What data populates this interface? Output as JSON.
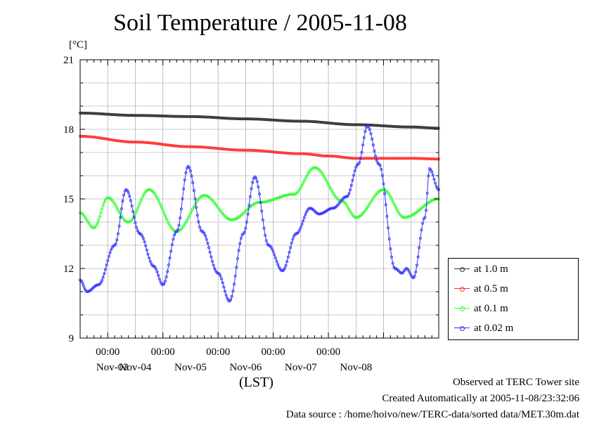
{
  "chart_data": {
    "type": "line",
    "title": "Soil Temperature / 2005-11-08",
    "ylabel": "[°C]",
    "xlabel": "(LST)",
    "ylim": [
      9,
      21
    ],
    "yticks": [
      "9",
      "12",
      "15",
      "18",
      "21"
    ],
    "x_start": "2005-11-02 12:00",
    "x_end": "2005-11-08 24:00",
    "time_labels": [
      "00:00",
      "00:00",
      "00:00",
      "00:00",
      "00:00"
    ],
    "date_labels": [
      "Nov-03",
      "Nov-04",
      "Nov-05",
      "Nov-06",
      "Nov-07",
      "Nov-08"
    ],
    "grid": true,
    "legend_position": "right",
    "series": [
      {
        "name": "at 1.0 m",
        "color": "#333333",
        "points": [
          [
            "11-02 12:00",
            18.7
          ],
          [
            "11-03 12:00",
            18.6
          ],
          [
            "11-04 12:00",
            18.55
          ],
          [
            "11-05 12:00",
            18.45
          ],
          [
            "11-06 12:00",
            18.35
          ],
          [
            "11-07 12:00",
            18.2
          ],
          [
            "11-08 12:00",
            18.1
          ],
          [
            "11-08 24:00",
            18.05
          ]
        ]
      },
      {
        "name": "at 0.5 m",
        "color": "#ff3333",
        "points": [
          [
            "11-02 12:00",
            17.7
          ],
          [
            "11-03 12:00",
            17.45
          ],
          [
            "11-04 12:00",
            17.25
          ],
          [
            "11-05 12:00",
            17.1
          ],
          [
            "11-06 12:00",
            16.95
          ],
          [
            "11-07 00:00",
            16.85
          ],
          [
            "11-07 12:00",
            16.75
          ],
          [
            "11-08 12:00",
            16.75
          ],
          [
            "11-08 24:00",
            16.72
          ]
        ]
      },
      {
        "name": "at 0.1 m",
        "color": "#33ff33",
        "points": [
          [
            "11-02 12:00",
            14.4
          ],
          [
            "11-02 18:00",
            13.75
          ],
          [
            "11-03 00:00",
            15.05
          ],
          [
            "11-03 09:00",
            14.0
          ],
          [
            "11-03 18:00",
            15.4
          ],
          [
            "11-04 06:00",
            13.6
          ],
          [
            "11-04 18:00",
            15.15
          ],
          [
            "11-05 06:00",
            14.1
          ],
          [
            "11-05 18:00",
            14.85
          ],
          [
            "11-06 09:00",
            15.2
          ],
          [
            "11-06 18:00",
            16.35
          ],
          [
            "11-07 06:00",
            14.9
          ],
          [
            "11-07 12:00",
            14.2
          ],
          [
            "11-08 00:00",
            15.4
          ],
          [
            "11-08 09:00",
            14.2
          ],
          [
            "11-08 24:00",
            15.0
          ]
        ]
      },
      {
        "name": "at 0.02 m",
        "color": "#3333ff",
        "points": [
          [
            "11-02 12:00",
            11.5
          ],
          [
            "11-02 15:00",
            11.0
          ],
          [
            "11-02 20:00",
            11.3
          ],
          [
            "11-03 03:00",
            13.0
          ],
          [
            "11-03 08:00",
            15.4
          ],
          [
            "11-03 14:00",
            13.5
          ],
          [
            "11-03 20:00",
            12.1
          ],
          [
            "11-04 00:00",
            11.3
          ],
          [
            "11-04 06:00",
            13.6
          ],
          [
            "11-04 11:00",
            16.4
          ],
          [
            "11-04 17:00",
            13.6
          ],
          [
            "11-05 00:00",
            11.8
          ],
          [
            "11-05 05:00",
            10.6
          ],
          [
            "11-05 11:00",
            13.5
          ],
          [
            "11-05 16:00",
            15.95
          ],
          [
            "11-05 22:00",
            13.0
          ],
          [
            "11-06 04:00",
            11.9
          ],
          [
            "11-06 10:00",
            13.5
          ],
          [
            "11-06 16:00",
            14.6
          ],
          [
            "11-06 20:00",
            14.35
          ],
          [
            "11-07 02:00",
            14.6
          ],
          [
            "11-07 08:00",
            15.1
          ],
          [
            "11-07 13:00",
            16.5
          ],
          [
            "11-07 17:00",
            18.15
          ],
          [
            "11-07 22:00",
            16.5
          ],
          [
            "11-08 05:00",
            12.0
          ],
          [
            "11-08 08:00",
            11.8
          ],
          [
            "11-08 10:00",
            12.0
          ],
          [
            "11-08 13:00",
            11.6
          ],
          [
            "11-08 18:00",
            14.2
          ],
          [
            "11-08 20:00",
            16.3
          ],
          [
            "11-09 00:00",
            15.4
          ],
          [
            "11-09 03:00",
            13.5
          ]
        ]
      }
    ]
  },
  "footer": {
    "line1": "Observed at TERC Tower site",
    "line2": "Created Automatically at 2005-11-08/23:32:06",
    "line3": "Data source : /home/hoivo/new/TERC-data/sorted  data/MET.30m.dat"
  }
}
